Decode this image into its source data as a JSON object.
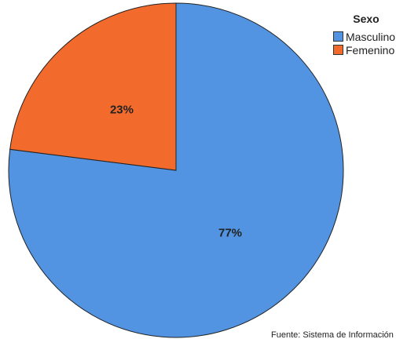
{
  "chart_data": {
    "type": "pie",
    "title": "",
    "legend_title": "Sexo",
    "legend_placement": "top-right",
    "categories": [
      "Masculino",
      "Femenino"
    ],
    "values": [
      77,
      23
    ],
    "labels": [
      "77%",
      "23%"
    ],
    "colors": [
      "#5294e2",
      "#f26b2c"
    ],
    "source": "Fuente: Sistema de Información"
  }
}
